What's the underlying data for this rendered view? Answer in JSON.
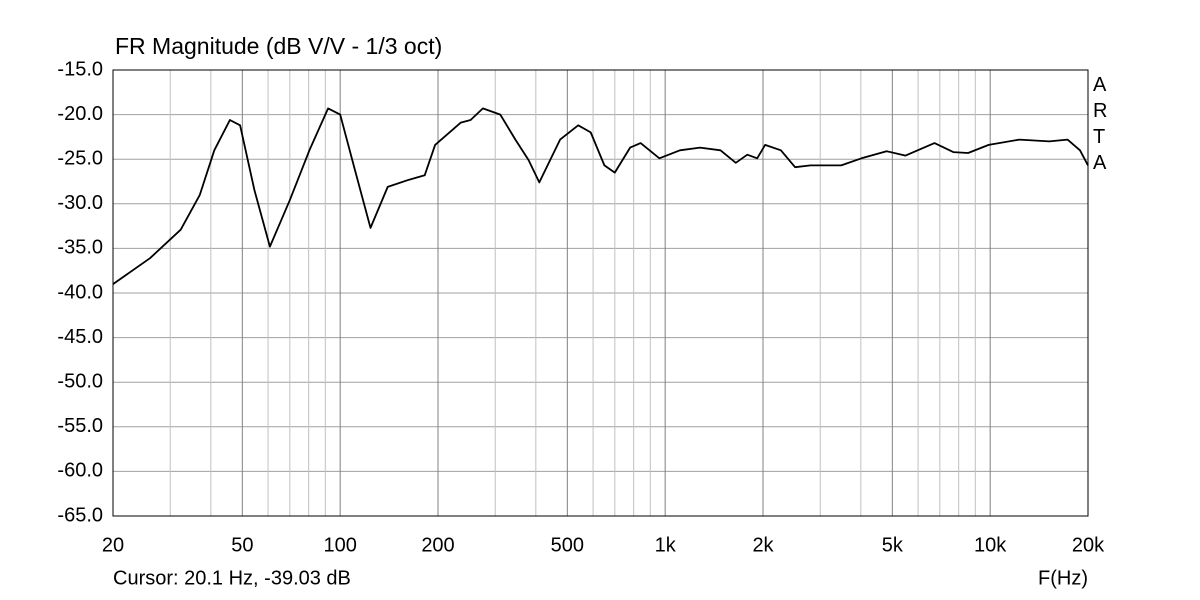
{
  "chart_data": {
    "type": "line",
    "title": "FR Magnitude (dB V/V - 1/3 oct)",
    "xlabel": "F(Hz)",
    "annotation": "Cursor: 20.1 Hz, -39.03 dB",
    "watermark": "ARTA",
    "xscale": "log",
    "color": "#000000",
    "grid": true,
    "x": [
      20,
      26,
      32.3,
      37,
      41,
      45.8,
      49.2,
      54.5,
      60.8,
      70,
      80.4,
      91.8,
      100,
      111,
      124,
      140,
      163,
      182,
      196,
      235,
      252,
      275,
      311,
      346,
      380,
      410,
      475,
      540,
      590,
      650,
      700,
      780,
      840,
      960,
      1110,
      1280,
      1480,
      1650,
      1790,
      1920,
      2030,
      2270,
      2510,
      2800,
      3480,
      4020,
      4800,
      5490,
      6740,
      7700,
      8550,
      9900,
      12300,
      15200,
      17300,
      18900,
      20000
    ],
    "values": [
      -39.0,
      -36.1,
      -32.9,
      -29.0,
      -24.0,
      -20.6,
      -21.2,
      -28.5,
      -34.8,
      -29.6,
      -24.0,
      -19.3,
      -20.0,
      -26.2,
      -32.7,
      -28.1,
      -27.3,
      -26.8,
      -23.4,
      -20.9,
      -20.6,
      -19.3,
      -20.0,
      -22.8,
      -25.1,
      -27.6,
      -22.8,
      -21.2,
      -22.0,
      -25.7,
      -26.5,
      -23.7,
      -23.2,
      -24.9,
      -24.0,
      -23.7,
      -24.0,
      -25.4,
      -24.5,
      -24.9,
      -23.4,
      -24.0,
      -25.9,
      -25.7,
      -25.7,
      -24.9,
      -24.1,
      -24.6,
      -23.2,
      -24.2,
      -24.3,
      -23.4,
      -22.8,
      -23.0,
      -22.8,
      -24.0,
      -25.7
    ],
    "xlim": [
      20,
      20000
    ],
    "ylim": [
      -65,
      -15
    ],
    "xticks": [
      20,
      50,
      100,
      200,
      500,
      {
        "value": 1000,
        "label": "1k"
      },
      {
        "value": 2000,
        "label": "2k"
      },
      {
        "value": 5000,
        "label": "5k"
      },
      {
        "value": 10000,
        "label": "10k"
      },
      {
        "value": 20000,
        "label": "20k"
      }
    ],
    "xgrid": [
      30,
      40,
      60,
      70,
      80,
      90,
      300,
      400,
      600,
      700,
      800,
      900,
      3000,
      4000,
      6000,
      7000,
      8000,
      9000
    ],
    "yticks": [
      {
        "value": -15,
        "label": "-15.0"
      },
      {
        "value": -20,
        "label": "-20.0"
      },
      {
        "value": -25,
        "label": "-25.0"
      },
      {
        "value": -30,
        "label": "-30.0"
      },
      {
        "value": -35,
        "label": "-35.0"
      },
      {
        "value": -40,
        "label": "-40.0"
      },
      {
        "value": -45,
        "label": "-45.0"
      },
      {
        "value": -50,
        "label": "-50.0"
      },
      {
        "value": -55,
        "label": "-55.0"
      },
      {
        "value": -60,
        "label": "-60.0"
      },
      {
        "value": -65,
        "label": "-65.0"
      }
    ]
  }
}
